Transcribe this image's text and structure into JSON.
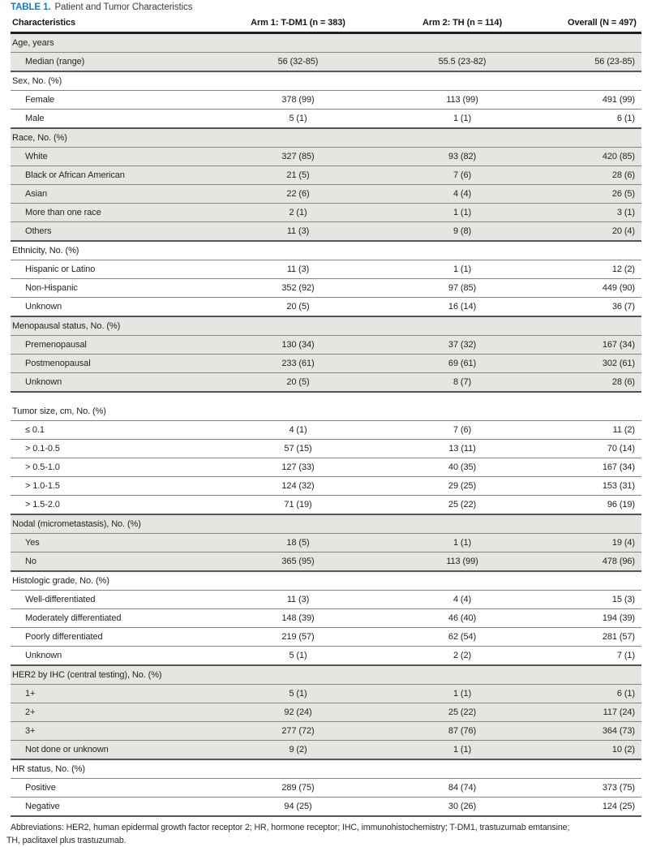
{
  "title": {
    "label": "TABLE 1.",
    "caption": "Patient and Tumor Characteristics"
  },
  "colors": {
    "accent_blue": "#1e7abf",
    "row_shading": "#e6e5e2"
  },
  "table": {
    "columns": [
      "Characteristics",
      "Arm 1: T-DM1 (n = 383)",
      "Arm 2: TH (n = 114)",
      "Overall (N = 497)"
    ],
    "sections": [
      {
        "header": "Age, years",
        "shaded": true,
        "gap_before": false,
        "rows": [
          {
            "label": "Median (range)",
            "arm1": "56 (32-85)",
            "arm2": "55.5 (23-82)",
            "overall": "56 (23-85)"
          }
        ]
      },
      {
        "header": "Sex, No. (%)",
        "shaded": false,
        "gap_before": false,
        "rows": [
          {
            "label": "Female",
            "arm1": "378 (99)",
            "arm2": "113 (99)",
            "overall": "491 (99)"
          },
          {
            "label": "Male",
            "arm1": "5 (1)",
            "arm2": "1 (1)",
            "overall": "6 (1)"
          }
        ]
      },
      {
        "header": "Race, No. (%)",
        "shaded": true,
        "gap_before": false,
        "rows": [
          {
            "label": "White",
            "arm1": "327 (85)",
            "arm2": "93 (82)",
            "overall": "420 (85)"
          },
          {
            "label": "Black or African American",
            "arm1": "21 (5)",
            "arm2": "7 (6)",
            "overall": "28 (6)"
          },
          {
            "label": "Asian",
            "arm1": "22 (6)",
            "arm2": "4 (4)",
            "overall": "26 (5)"
          },
          {
            "label": "More than one race",
            "arm1": "2 (1)",
            "arm2": "1 (1)",
            "overall": "3 (1)"
          },
          {
            "label": "Others",
            "arm1": "11 (3)",
            "arm2": "9 (8)",
            "overall": "20 (4)"
          }
        ]
      },
      {
        "header": "Ethnicity, No. (%)",
        "shaded": false,
        "gap_before": false,
        "rows": [
          {
            "label": "Hispanic or Latino",
            "arm1": "11 (3)",
            "arm2": "1 (1)",
            "overall": "12 (2)"
          },
          {
            "label": "Non-Hispanic",
            "arm1": "352 (92)",
            "arm2": "97 (85)",
            "overall": "449 (90)"
          },
          {
            "label": "Unknown",
            "arm1": "20 (5)",
            "arm2": "16 (14)",
            "overall": "36 (7)"
          }
        ]
      },
      {
        "header": "Menopausal status, No. (%)",
        "shaded": true,
        "gap_before": false,
        "rows": [
          {
            "label": "Premenopausal",
            "arm1": "130 (34)",
            "arm2": "37 (32)",
            "overall": "167 (34)"
          },
          {
            "label": "Postmenopausal",
            "arm1": "233 (61)",
            "arm2": "69 (61)",
            "overall": "302 (61)"
          },
          {
            "label": "Unknown",
            "arm1": "20 (5)",
            "arm2": "8 (7)",
            "overall": "28 (6)"
          }
        ]
      },
      {
        "header": "Tumor size, cm, No. (%)",
        "shaded": false,
        "gap_before": true,
        "rows": [
          {
            "label": "≤ 0.1",
            "arm1": "4 (1)",
            "arm2": "7 (6)",
            "overall": "11 (2)"
          },
          {
            "label": "> 0.1-0.5",
            "arm1": "57 (15)",
            "arm2": "13 (11)",
            "overall": "70 (14)"
          },
          {
            "label": "> 0.5-1.0",
            "arm1": "127 (33)",
            "arm2": "40 (35)",
            "overall": "167 (34)"
          },
          {
            "label": "> 1.0-1.5",
            "arm1": "124 (32)",
            "arm2": "29 (25)",
            "overall": "153 (31)"
          },
          {
            "label": "> 1.5-2.0",
            "arm1": "71 (19)",
            "arm2": "25 (22)",
            "overall": "96 (19)"
          }
        ]
      },
      {
        "header": "Nodal (micrometastasis), No. (%)",
        "shaded": true,
        "gap_before": false,
        "rows": [
          {
            "label": "Yes",
            "arm1": "18 (5)",
            "arm2": "1 (1)",
            "overall": "19 (4)"
          },
          {
            "label": "No",
            "arm1": "365 (95)",
            "arm2": "113 (99)",
            "overall": "478 (96)"
          }
        ]
      },
      {
        "header": "Histologic grade, No. (%)",
        "shaded": false,
        "gap_before": false,
        "rows": [
          {
            "label": "Well-differentiated",
            "arm1": "11 (3)",
            "arm2": "4 (4)",
            "overall": "15 (3)"
          },
          {
            "label": "Moderately differentiated",
            "arm1": "148 (39)",
            "arm2": "46 (40)",
            "overall": "194 (39)"
          },
          {
            "label": "Poorly differentiated",
            "arm1": "219 (57)",
            "arm2": "62 (54)",
            "overall": "281 (57)"
          },
          {
            "label": "Unknown",
            "arm1": "5 (1)",
            "arm2": "2 (2)",
            "overall": "7 (1)"
          }
        ]
      },
      {
        "header": "HER2 by IHC (central testing), No. (%)",
        "shaded": true,
        "gap_before": false,
        "rows": [
          {
            "label": "1+",
            "arm1": "5 (1)",
            "arm2": "1 (1)",
            "overall": "6 (1)"
          },
          {
            "label": "2+",
            "arm1": "92 (24)",
            "arm2": "25 (22)",
            "overall": "117 (24)"
          },
          {
            "label": "3+",
            "arm1": "277 (72)",
            "arm2": "87 (76)",
            "overall": "364 (73)"
          },
          {
            "label": "Not done or unknown",
            "arm1": "9 (2)",
            "arm2": "1 (1)",
            "overall": "10 (2)"
          }
        ]
      },
      {
        "header": "HR status, No. (%)",
        "shaded": false,
        "gap_before": false,
        "rows": [
          {
            "label": "Positive",
            "arm1": "289 (75)",
            "arm2": "84 (74)",
            "overall": "373 (75)"
          },
          {
            "label": "Negative",
            "arm1": "94 (25)",
            "arm2": "30 (26)",
            "overall": "124 (25)"
          }
        ]
      }
    ]
  },
  "footnote": {
    "line1": "Abbreviations: HER2, human epidermal growth factor receptor 2; HR, hormone receptor; IHC, immunohistochemistry; T-DM1, trastuzumab emtansine;",
    "line2": "TH, paclitaxel plus trastuzumab."
  }
}
